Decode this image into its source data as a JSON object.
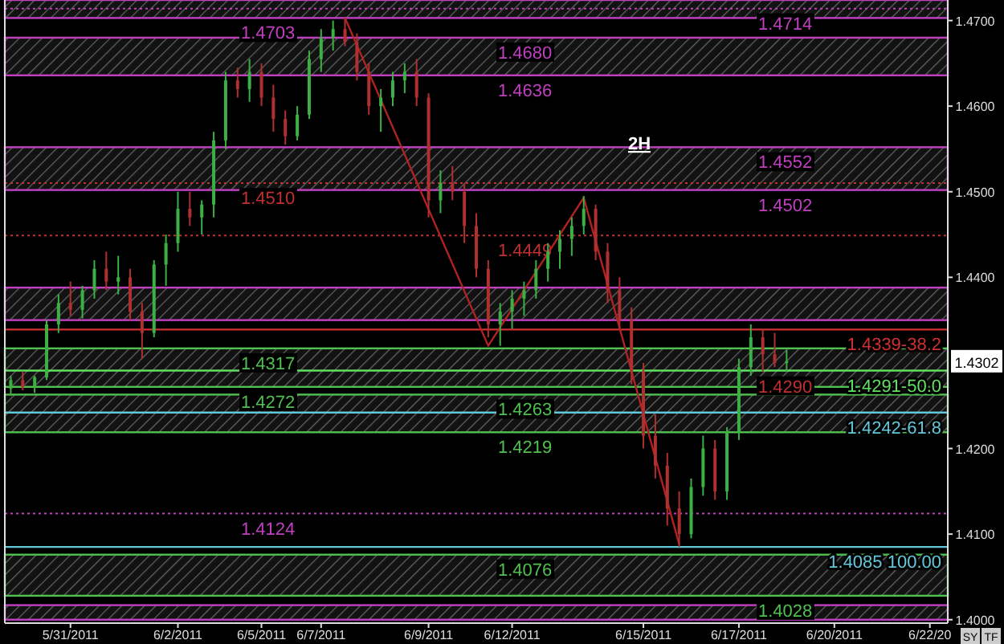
{
  "chart_data": {
    "type": "candlestick",
    "title": "2H",
    "ylim": [
      1.3996,
      1.4724
    ],
    "categories": [
      null,
      null,
      null,
      null,
      null,
      "5/31/2011",
      null,
      null,
      null,
      null,
      null,
      null,
      null,
      null,
      "6/2/2011",
      null,
      null,
      null,
      null,
      null,
      null,
      "6/5/2011",
      null,
      null,
      null,
      null,
      "6/7/2011",
      null,
      null,
      null,
      null,
      null,
      null,
      null,
      null,
      "6/9/2011",
      null,
      null,
      null,
      null,
      null,
      null,
      "6/12/2011",
      null,
      null,
      null,
      null,
      null,
      null,
      null,
      null,
      null,
      null,
      "6/15/2011",
      null,
      null,
      null,
      null,
      null,
      null,
      null,
      "6/17/2011",
      null,
      null,
      null,
      null,
      null,
      null,
      null,
      "6/20/2011",
      null,
      null,
      null,
      null,
      null,
      null,
      null,
      "6/22/20",
      null
    ],
    "yticks": [
      {
        "value": 1.4,
        "label": "1.4000"
      },
      {
        "value": 1.41,
        "label": "1.4100"
      },
      {
        "value": 1.42,
        "label": "1.4200"
      },
      {
        "value": 1.44,
        "label": "1.4400"
      },
      {
        "value": 1.45,
        "label": "1.4500"
      },
      {
        "value": 1.46,
        "label": "1.4600"
      },
      {
        "value": 1.47,
        "label": "1.4700"
      }
    ],
    "ohlc": [
      [
        1.427,
        1.4285,
        1.4262,
        1.428
      ],
      [
        1.428,
        1.429,
        1.4268,
        1.4272
      ],
      [
        1.4272,
        1.4285,
        1.4265,
        1.4283
      ],
      [
        1.4283,
        1.435,
        1.428,
        1.4345
      ],
      [
        1.4345,
        1.438,
        1.4335,
        1.437
      ],
      [
        1.437,
        1.4395,
        1.4355,
        1.4362
      ],
      [
        1.4362,
        1.439,
        1.4352,
        1.4385
      ],
      [
        1.4385,
        1.442,
        1.4375,
        1.441
      ],
      [
        1.441,
        1.443,
        1.4385,
        1.4395
      ],
      [
        1.4395,
        1.4425,
        1.438,
        1.44
      ],
      [
        1.44,
        1.441,
        1.435,
        1.436
      ],
      [
        1.436,
        1.437,
        1.4305,
        1.4335
      ],
      [
        1.4335,
        1.442,
        1.433,
        1.4415
      ],
      [
        1.4415,
        1.445,
        1.439,
        1.444
      ],
      [
        1.444,
        1.45,
        1.443,
        1.448
      ],
      [
        1.448,
        1.45,
        1.446,
        1.447
      ],
      [
        1.447,
        1.449,
        1.445,
        1.4485
      ],
      [
        1.4485,
        1.457,
        1.447,
        1.456
      ],
      [
        1.456,
        1.464,
        1.455,
        1.463
      ],
      [
        1.463,
        1.4645,
        1.461,
        1.462
      ],
      [
        1.462,
        1.4655,
        1.4605,
        1.464
      ],
      [
        1.464,
        1.465,
        1.46,
        1.461
      ],
      [
        1.461,
        1.4625,
        1.457,
        1.4585
      ],
      [
        1.4585,
        1.4595,
        1.4555,
        1.4565
      ],
      [
        1.4565,
        1.46,
        1.456,
        1.459
      ],
      [
        1.459,
        1.4665,
        1.4585,
        1.4655
      ],
      [
        1.4655,
        1.469,
        1.464,
        1.468
      ],
      [
        1.468,
        1.47,
        1.4665,
        1.469
      ],
      [
        1.469,
        1.4703,
        1.467,
        1.4675
      ],
      [
        1.4675,
        1.4685,
        1.463,
        1.464
      ],
      [
        1.464,
        1.465,
        1.459,
        1.46
      ],
      [
        1.46,
        1.462,
        1.457,
        1.461
      ],
      [
        1.461,
        1.464,
        1.46,
        1.463
      ],
      [
        1.463,
        1.465,
        1.4615,
        1.464
      ],
      [
        1.464,
        1.4655,
        1.46,
        1.461
      ],
      [
        1.461,
        1.4615,
        1.447,
        1.449
      ],
      [
        1.449,
        1.4525,
        1.4475,
        1.451
      ],
      [
        1.451,
        1.453,
        1.449,
        1.45
      ],
      [
        1.45,
        1.451,
        1.444,
        1.446
      ],
      [
        1.446,
        1.4475,
        1.44,
        1.441
      ],
      [
        1.441,
        1.442,
        1.433,
        1.4345
      ],
      [
        1.4345,
        1.437,
        1.432,
        1.436
      ],
      [
        1.436,
        1.4385,
        1.434,
        1.4375
      ],
      [
        1.4375,
        1.4395,
        1.4355,
        1.4385
      ],
      [
        1.4385,
        1.442,
        1.4375,
        1.441
      ],
      [
        1.441,
        1.444,
        1.4395,
        1.443
      ],
      [
        1.443,
        1.4455,
        1.441,
        1.4445
      ],
      [
        1.4445,
        1.447,
        1.4425,
        1.446
      ],
      [
        1.446,
        1.4495,
        1.445,
        1.448
      ],
      [
        1.448,
        1.4485,
        1.442,
        1.443
      ],
      [
        1.443,
        1.444,
        1.437,
        1.4385
      ],
      [
        1.4385,
        1.44,
        1.434,
        1.435
      ],
      [
        1.435,
        1.4365,
        1.4275,
        1.429
      ],
      [
        1.429,
        1.43,
        1.42,
        1.4215
      ],
      [
        1.4215,
        1.424,
        1.4165,
        1.418
      ],
      [
        1.418,
        1.4195,
        1.411,
        1.413
      ],
      [
        1.413,
        1.415,
        1.4085,
        1.41
      ],
      [
        1.41,
        1.4165,
        1.4095,
        1.4155
      ],
      [
        1.4155,
        1.4215,
        1.4145,
        1.42
      ],
      [
        1.42,
        1.421,
        1.414,
        1.415
      ],
      [
        1.415,
        1.4225,
        1.414,
        1.422
      ],
      [
        1.422,
        1.4305,
        1.421,
        1.4295
      ],
      [
        1.4295,
        1.4345,
        1.4285,
        1.433
      ],
      [
        1.433,
        1.434,
        1.429,
        1.431
      ],
      [
        1.431,
        1.4335,
        1.4295,
        1.43
      ],
      [
        1.43,
        1.4315,
        1.429,
        1.4302
      ],
      null,
      null,
      null,
      null,
      null,
      null,
      null,
      null,
      null,
      null,
      null,
      null,
      null
    ],
    "colors": [
      "#3cb043",
      "#b03030",
      "#3cb043",
      "#3cb043",
      "#3cb043",
      "#b03030",
      "#3cb043",
      "#3cb043",
      "#b03030",
      "#3cb043",
      "#b03030",
      "#b03030",
      "#3cb043",
      "#3cb043",
      "#3cb043",
      "#b03030",
      "#3cb043",
      "#3cb043",
      "#3cb043",
      "#b03030",
      "#3cb043",
      "#b03030",
      "#b03030",
      "#b03030",
      "#3cb043",
      "#3cb043",
      "#3cb043",
      "#3cb043",
      "#b03030",
      "#b03030",
      "#b03030",
      "#3cb043",
      "#3cb043",
      "#3cb043",
      "#b03030",
      "#b03030",
      "#3cb043",
      "#b03030",
      "#b03030",
      "#b03030",
      "#b03030",
      "#3cb043",
      "#3cb043",
      "#3cb043",
      "#3cb043",
      "#3cb043",
      "#3cb043",
      "#3cb043",
      "#3cb043",
      "#b03030",
      "#b03030",
      "#b03030",
      "#b03030",
      "#b03030",
      "#b03030",
      "#b03030",
      "#b03030",
      "#3cb043",
      "#3cb043",
      "#b03030",
      "#3cb043",
      "#3cb043",
      "#3cb043",
      "#b03030",
      "#b03030",
      "#3cb043",
      null,
      null,
      null,
      null,
      null,
      null,
      null,
      null,
      null,
      null,
      null,
      null,
      null
    ],
    "series": [
      {
        "type": "line",
        "color": "#b22222",
        "values": [
          null,
          null,
          null,
          null,
          null,
          null,
          null,
          null,
          null,
          null,
          null,
          null,
          null,
          null,
          null,
          null,
          null,
          null,
          null,
          null,
          null,
          null,
          null,
          null,
          null,
          null,
          null,
          null,
          1.4703,
          null,
          null,
          null,
          null,
          null,
          null,
          null,
          null,
          null,
          null,
          null,
          1.432,
          null,
          null,
          null,
          null,
          null,
          null,
          null,
          1.4493,
          null,
          null,
          null,
          null,
          null,
          null,
          null,
          1.4088,
          null,
          null,
          null,
          null,
          null,
          null,
          null,
          null,
          null,
          null,
          null,
          null,
          null,
          null,
          null,
          null,
          null,
          null,
          null,
          null,
          null,
          null
        ]
      }
    ],
    "bands": [
      {
        "axis": "y",
        "from": 1.4703,
        "to": 1.4724,
        "color": "#c040c0"
      },
      {
        "axis": "y",
        "from": 1.4636,
        "to": 1.468,
        "color": "#c040c0"
      },
      {
        "axis": "y",
        "from": 1.4502,
        "to": 1.4552,
        "color": "#c040c0"
      },
      {
        "axis": "y",
        "from": 1.435,
        "to": 1.4388,
        "color": "#c040c0"
      },
      {
        "axis": "y",
        "from": 1.4272,
        "to": 1.4317,
        "color": "#50c050"
      },
      {
        "axis": "y",
        "from": 1.4219,
        "to": 1.4263,
        "color": "#50c050"
      },
      {
        "axis": "y",
        "from": 1.4028,
        "to": 1.4076,
        "color": "#50c050"
      },
      {
        "axis": "y",
        "from": 1.4,
        "to": 1.4017,
        "color": "#c040c0"
      }
    ],
    "ref_lines": [
      {
        "axis": "y",
        "value": 1.4339,
        "label": "1.4339-38.2",
        "color": "#d03030"
      },
      {
        "axis": "y",
        "value": 1.4291,
        "label": "1.4291-50.0",
        "color": "#60e060"
      },
      {
        "axis": "y",
        "value": 1.4242,
        "label": "1.4242-61.8",
        "color": "#60c8d8"
      },
      {
        "axis": "y",
        "value": 1.4085,
        "label": "1.4085 100.00",
        "color": "#60c8d8"
      },
      {
        "axis": "y",
        "value": 1.4714,
        "color": "#c040c0",
        "line_style": "dotted"
      },
      {
        "axis": "y",
        "value": 1.451,
        "color": "#c03030",
        "line_style": "dotted"
      },
      {
        "axis": "y",
        "value": 1.4449,
        "color": "#c03030",
        "line_style": "dotted"
      },
      {
        "axis": "y",
        "value": 1.4124,
        "color": "#c040c0",
        "line_style": "dotted"
      }
    ],
    "annotations": [
      {
        "text": "1.4703",
        "y": 1.4703
      },
      {
        "text": "1.4510",
        "y": 1.451
      },
      {
        "text": "1.4317",
        "y": 1.4317
      },
      {
        "text": "1.4272",
        "y": 1.4272
      },
      {
        "text": "1.4124",
        "y": 1.4124
      },
      {
        "text": "1.4680",
        "y": 1.468
      },
      {
        "text": "1.4636",
        "y": 1.4636
      },
      {
        "text": "1.4449",
        "y": 1.4449
      },
      {
        "text": "1.4263",
        "y": 1.4263
      },
      {
        "text": "1.4219",
        "y": 1.4219
      },
      {
        "text": "1.4076",
        "y": 1.4076
      },
      {
        "text": "1.4714",
        "y": 1.4714
      },
      {
        "text": "1.4552",
        "y": 1.4552
      },
      {
        "text": "1.4502",
        "y": 1.4502
      },
      {
        "text": "1.4290",
        "y": 1.429
      },
      {
        "text": "1.4028",
        "y": 1.4028
      },
      {
        "text": "1.4302",
        "y": 1.4302
      },
      "SY",
      "TF"
    ]
  }
}
